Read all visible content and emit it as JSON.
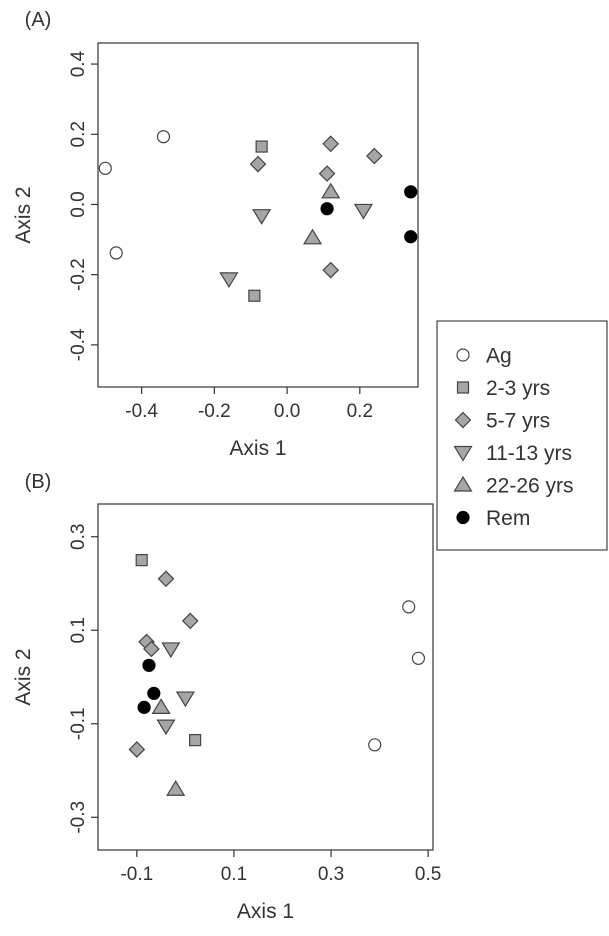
{
  "figure": {
    "legend": {
      "entries": [
        {
          "label": "Ag",
          "marker": "circle",
          "fill": "#ffffff"
        },
        {
          "label": "2-3 yrs",
          "marker": "square",
          "fill": "#a6a6a6"
        },
        {
          "label": "5-7 yrs",
          "marker": "diamond",
          "fill": "#a6a6a6"
        },
        {
          "label": "11-13 yrs",
          "marker": "triangle-down",
          "fill": "#a6a6a6"
        },
        {
          "label": "22-26 yrs",
          "marker": "triangle-up",
          "fill": "#a6a6a6"
        },
        {
          "label": "Rem",
          "marker": "circle",
          "fill": "#000000"
        }
      ],
      "placement": "right"
    }
  },
  "chart_data": [
    {
      "type": "scatter",
      "panel_label": "(A)",
      "xlabel": "Axis 1",
      "ylabel": "Axis 2",
      "xlim": [
        -0.52,
        0.36
      ],
      "ylim": [
        -0.52,
        0.46
      ],
      "xticks": [
        "-0.4",
        "-0.2",
        "0.0",
        "0.2"
      ],
      "xtick_values": [
        -0.4,
        -0.2,
        0.0,
        0.2
      ],
      "yticks": [
        "-0.4",
        "-0.2",
        "0.0",
        "0.2",
        "0.4"
      ],
      "ytick_values": [
        -0.4,
        -0.2,
        0.0,
        0.2,
        0.4
      ],
      "grid": false,
      "series": [
        {
          "name": "Ag",
          "points": [
            [
              -0.5,
              0.103
            ],
            [
              -0.34,
              0.193
            ],
            [
              -0.47,
              -0.138
            ]
          ]
        },
        {
          "name": "2-3 yrs",
          "points": [
            [
              -0.07,
              0.165
            ],
            [
              -0.09,
              -0.26
            ]
          ]
        },
        {
          "name": "5-7 yrs",
          "points": [
            [
              -0.08,
              0.115
            ],
            [
              0.12,
              0.173
            ],
            [
              0.11,
              0.088
            ],
            [
              0.24,
              0.138
            ],
            [
              0.12,
              -0.187
            ]
          ]
        },
        {
          "name": "11-13 yrs",
          "points": [
            [
              -0.07,
              -0.032
            ],
            [
              0.21,
              -0.017
            ],
            [
              -0.16,
              -0.212
            ]
          ]
        },
        {
          "name": "22-26 yrs",
          "points": [
            [
              0.12,
              0.036
            ],
            [
              0.07,
              -0.095
            ]
          ]
        },
        {
          "name": "Rem",
          "points": [
            [
              0.11,
              -0.012
            ],
            [
              0.34,
              0.036
            ],
            [
              0.34,
              -0.092
            ]
          ]
        }
      ]
    },
    {
      "type": "scatter",
      "panel_label": "(B)",
      "xlabel": "Axis 1",
      "ylabel": "Axis 2",
      "xlim": [
        -0.18,
        0.51
      ],
      "ylim": [
        -0.37,
        0.37
      ],
      "xticks": [
        "-0.1",
        "0.1",
        "0.3",
        "0.5"
      ],
      "xtick_values": [
        -0.1,
        0.1,
        0.3,
        0.5
      ],
      "yticks": [
        "-0.3",
        "-0.1",
        "0.1",
        "0.3"
      ],
      "ytick_values": [
        -0.3,
        -0.1,
        0.1,
        0.3
      ],
      "grid": false,
      "series": [
        {
          "name": "Ag",
          "points": [
            [
              0.46,
              0.15
            ],
            [
              0.48,
              0.04
            ],
            [
              0.39,
              -0.145
            ]
          ]
        },
        {
          "name": "2-3 yrs",
          "points": [
            [
              -0.09,
              0.25
            ],
            [
              0.02,
              -0.135
            ]
          ]
        },
        {
          "name": "5-7 yrs",
          "points": [
            [
              -0.04,
              0.21
            ],
            [
              0.01,
              0.12
            ],
            [
              -0.08,
              0.075
            ],
            [
              -0.07,
              0.06
            ],
            [
              -0.1,
              -0.155
            ]
          ]
        },
        {
          "name": "11-13 yrs",
          "points": [
            [
              -0.03,
              0.06
            ],
            [
              0.0,
              -0.045
            ],
            [
              -0.04,
              -0.105
            ]
          ]
        },
        {
          "name": "22-26 yrs",
          "points": [
            [
              -0.05,
              -0.065
            ],
            [
              -0.02,
              -0.24
            ]
          ]
        },
        {
          "name": "Rem",
          "points": [
            [
              -0.075,
              0.025
            ],
            [
              -0.065,
              -0.035
            ],
            [
              -0.085,
              -0.065
            ]
          ]
        }
      ]
    }
  ]
}
